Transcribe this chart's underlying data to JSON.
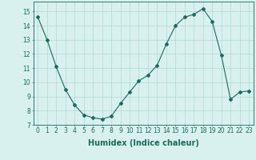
{
  "x": [
    0,
    1,
    2,
    3,
    4,
    5,
    6,
    7,
    8,
    9,
    10,
    11,
    12,
    13,
    14,
    15,
    16,
    17,
    18,
    19,
    20,
    21,
    22,
    23
  ],
  "y": [
    14.6,
    13.0,
    11.1,
    9.5,
    8.4,
    7.7,
    7.5,
    7.4,
    7.6,
    8.5,
    9.3,
    10.1,
    10.5,
    11.2,
    12.7,
    14.0,
    14.6,
    14.8,
    15.2,
    14.3,
    11.9,
    8.8,
    9.3,
    9.4
  ],
  "line_color": "#1a6b5a",
  "marker": "D",
  "marker_size": 2,
  "bg_color": "#d8f0ee",
  "grid_color": "#b0d8d4",
  "xlabel": "Humidex (Indice chaleur)",
  "xlabel_color": "#1a6b5a",
  "xlim": [
    -0.5,
    23.5
  ],
  "ylim": [
    7,
    15.7
  ],
  "yticks": [
    7,
    8,
    9,
    10,
    11,
    12,
    13,
    14,
    15
  ],
  "xticks": [
    0,
    1,
    2,
    3,
    4,
    5,
    6,
    7,
    8,
    9,
    10,
    11,
    12,
    13,
    14,
    15,
    16,
    17,
    18,
    19,
    20,
    21,
    22,
    23
  ],
  "tick_color": "#1a6b5a",
  "axis_color": "#1a6b5a",
  "label_fontsize": 5.5,
  "xlabel_fontsize": 7
}
